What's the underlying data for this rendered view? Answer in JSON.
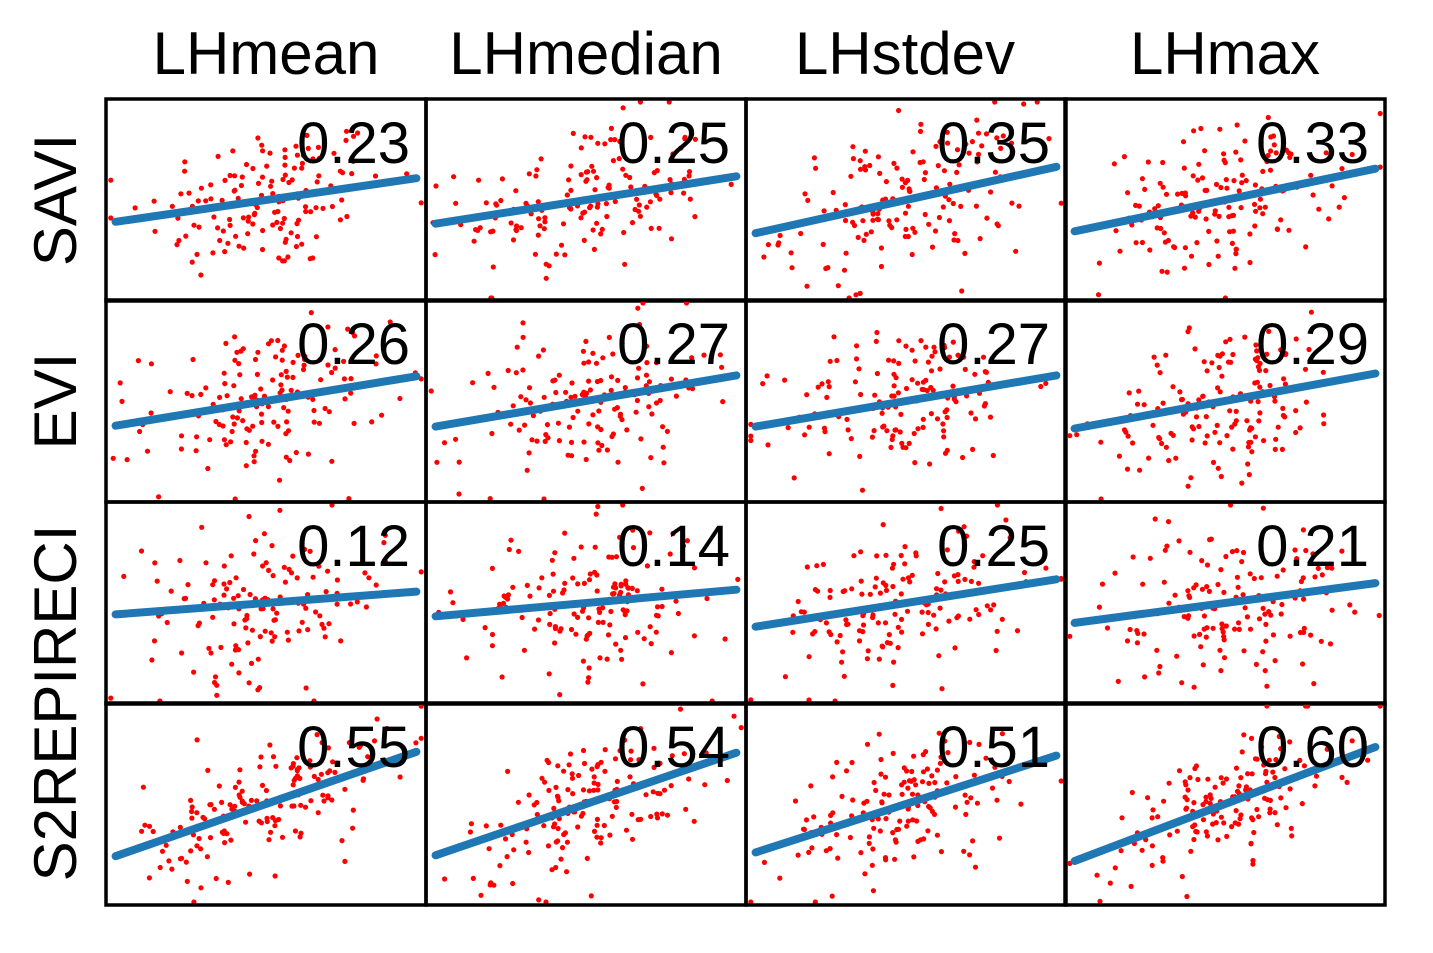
{
  "chart_data": {
    "type": "scatter",
    "layout": "grid",
    "columns": [
      "LHmean",
      "LHmedian",
      "LHstdev",
      "LHmax"
    ],
    "rows": [
      "SAVI",
      "EVI",
      "S2REPIRECI",
      "S2REPIRECI"
    ],
    "row_labels": [
      "SAVI",
      "EVI",
      "S2REPIRECI"
    ],
    "point_color": "#ff0000",
    "line_color": "#1f77b4",
    "points_per_panel": 150,
    "panels": [
      {
        "row": "SAVI",
        "col": "LHmean",
        "r": "0.23"
      },
      {
        "row": "SAVI",
        "col": "LHmedian",
        "r": "0.25"
      },
      {
        "row": "SAVI",
        "col": "LHstdev",
        "r": "0.35"
      },
      {
        "row": "SAVI",
        "col": "LHmax",
        "r": "0.33"
      },
      {
        "row": "EVI",
        "col": "LHmean",
        "r": "0.26"
      },
      {
        "row": "EVI",
        "col": "LHmedian",
        "r": "0.27"
      },
      {
        "row": "EVI",
        "col": "LHstdev",
        "r": "0.27"
      },
      {
        "row": "EVI",
        "col": "LHmax",
        "r": "0.29"
      },
      {
        "row": "S2REPIRECI",
        "col": "LHmean",
        "r": "0.12"
      },
      {
        "row": "S2REPIRECI",
        "col": "LHmedian",
        "r": "0.14"
      },
      {
        "row": "S2REPIRECI",
        "col": "LHstdev",
        "r": "0.25"
      },
      {
        "row": "S2REPIRECI",
        "col": "LHmax",
        "r": "0.21"
      },
      {
        "row": "S2REPIRECI",
        "col": "LHmean",
        "r": "0.55"
      },
      {
        "row": "S2REPIRECI",
        "col": "LHmedian",
        "r": "0.54"
      },
      {
        "row": "S2REPIRECI",
        "col": "LHstdev",
        "r": "0.51"
      },
      {
        "row": "S2REPIRECI",
        "col": "LHmax",
        "r": "0.60"
      }
    ]
  }
}
